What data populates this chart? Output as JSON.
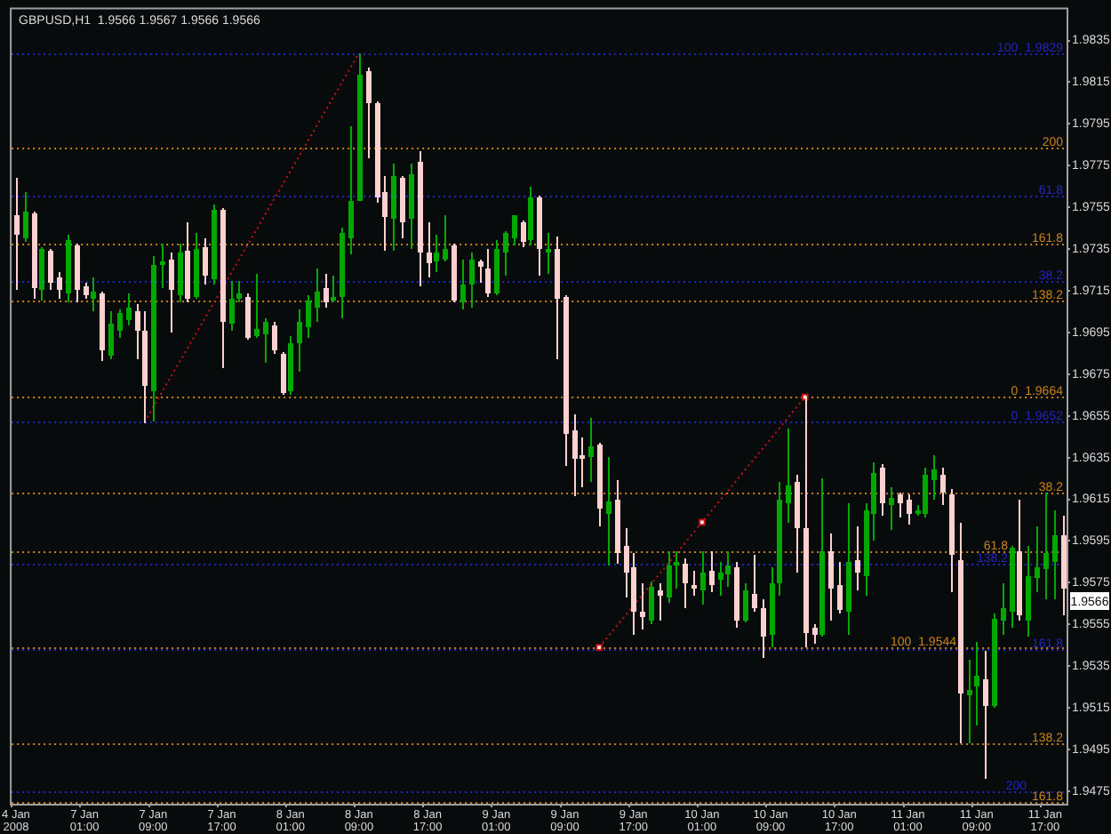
{
  "chart_data": {
    "type": "candlestick",
    "title": "GBPUSD,H1  1.9566 1.9567 1.9566 1.9566",
    "categories": [
      "4 Jan 2008",
      null,
      null,
      null,
      null,
      null,
      null,
      null,
      "7 Jan 01:00",
      null,
      null,
      null,
      null,
      null,
      null,
      null,
      "7 Jan 09:00",
      null,
      null,
      null,
      null,
      null,
      null,
      null,
      "7 Jan 17:00",
      null,
      null,
      null,
      null,
      null,
      null,
      null,
      "8 Jan 01:00",
      null,
      null,
      null,
      null,
      null,
      null,
      null,
      "8 Jan 09:00",
      null,
      null,
      null,
      null,
      null,
      null,
      null,
      "8 Jan 17:00",
      null,
      null,
      null,
      null,
      null,
      null,
      null,
      "9 Jan 01:00",
      null,
      null,
      null,
      null,
      null,
      null,
      null,
      "9 Jan 09:00",
      null,
      null,
      null,
      null,
      null,
      null,
      null,
      "9 Jan 17:00",
      null,
      null,
      null,
      null,
      null,
      null,
      null,
      "10 Jan 01:00",
      null,
      null,
      null,
      null,
      null,
      null,
      null,
      "10 Jan 09:00",
      null,
      null,
      null,
      null,
      null,
      null,
      null,
      "10 Jan 17:00",
      null,
      null,
      null,
      null,
      null,
      null,
      null,
      "11 Jan 01:00",
      null,
      null,
      null,
      null,
      null,
      null,
      null,
      "11 Jan 09:00",
      null,
      null,
      null,
      null,
      null,
      null,
      null,
      "11 Jan 17:00",
      null,
      null
    ],
    "ohlc": [
      [
        1.9751,
        1.9769,
        1.9716,
        1.9743
      ],
      [
        1.9741,
        1.9762,
        1.9739,
        1.9753
      ],
      [
        1.9752,
        1.9753,
        1.9712,
        1.9717
      ],
      [
        1.9716,
        1.9736,
        1.9711,
        1.9735
      ],
      [
        1.9734,
        1.9735,
        1.9716,
        1.972
      ],
      [
        1.9721,
        1.9724,
        1.9712,
        1.9716
      ],
      [
        1.9715,
        1.9742,
        1.971,
        1.9739
      ],
      [
        1.9737,
        1.9738,
        1.971,
        1.9716
      ],
      [
        1.9717,
        1.9719,
        1.9712,
        1.9714
      ],
      [
        1.9712,
        1.9721,
        1.9706,
        1.9715
      ],
      [
        1.9714,
        1.9715,
        1.9682,
        1.9687
      ],
      [
        1.9685,
        1.9705,
        1.9683,
        1.9699
      ],
      [
        1.9697,
        1.9706,
        1.9693,
        1.9704
      ],
      [
        1.9702,
        1.9714,
        1.9699,
        1.9707
      ],
      [
        1.9705,
        1.9709,
        1.9683,
        1.9697
      ],
      [
        1.9696,
        1.9705,
        1.9652,
        1.967
      ],
      [
        1.9668,
        1.9732,
        1.9653,
        1.9727
      ],
      [
        1.9728,
        1.9738,
        1.9717,
        1.9729
      ],
      [
        1.973,
        1.9733,
        1.9696,
        1.9716
      ],
      [
        1.9714,
        1.9738,
        1.971,
        1.9733
      ],
      [
        1.9734,
        1.9748,
        1.971,
        1.9712
      ],
      [
        1.9713,
        1.9743,
        1.9712,
        1.9735
      ],
      [
        1.9736,
        1.974,
        1.9719,
        1.9723
      ],
      [
        1.9721,
        1.9756,
        1.9719,
        1.9754
      ],
      [
        1.9754,
        1.9755,
        1.9679,
        1.9701
      ],
      [
        1.97,
        1.972,
        1.9697,
        1.9711
      ],
      [
        1.9712,
        1.972,
        1.971,
        1.9714
      ],
      [
        1.9712,
        1.9714,
        1.9692,
        1.9693
      ],
      [
        1.9694,
        1.9723,
        1.9693,
        1.9697
      ],
      [
        1.9695,
        1.9702,
        1.9681,
        1.97
      ],
      [
        1.9698,
        1.97,
        1.9686,
        1.9687
      ],
      [
        1.9685,
        1.9686,
        1.9666,
        1.9667
      ],
      [
        1.9668,
        1.9693,
        1.9666,
        1.969
      ],
      [
        1.9691,
        1.9706,
        1.9677,
        1.97
      ],
      [
        1.9698,
        1.9713,
        1.9693,
        1.971
      ],
      [
        1.9708,
        1.9726,
        1.9701,
        1.9715
      ],
      [
        1.9716,
        1.9723,
        1.9708,
        1.971
      ],
      [
        1.9711,
        1.9722,
        1.971,
        1.9712
      ],
      [
        1.9713,
        1.9745,
        1.9703,
        1.9743
      ],
      [
        1.9741,
        1.9794,
        1.9733,
        1.9758
      ],
      [
        1.9759,
        1.9829,
        1.9759,
        1.9819
      ],
      [
        1.982,
        1.9822,
        1.9779,
        1.9806
      ],
      [
        1.9805,
        1.9806,
        1.9758,
        1.9761
      ],
      [
        1.9762,
        1.977,
        1.9735,
        1.9751
      ],
      [
        1.975,
        1.9776,
        1.9735,
        1.977
      ],
      [
        1.9769,
        1.977,
        1.9741,
        1.9749
      ],
      [
        1.975,
        1.9776,
        1.9736,
        1.9771
      ],
      [
        1.9777,
        1.9782,
        1.9718,
        1.9734
      ],
      [
        1.9733,
        1.9748,
        1.9722,
        1.9729
      ],
      [
        1.973,
        1.9742,
        1.9725,
        1.9733
      ],
      [
        1.9731,
        1.9751,
        1.973,
        1.9735
      ],
      [
        1.9737,
        1.9738,
        1.971,
        1.9711
      ],
      [
        1.971,
        1.973,
        1.9707,
        1.9718
      ],
      [
        1.9719,
        1.9733,
        1.9708,
        1.973
      ],
      [
        1.9729,
        1.973,
        1.972,
        1.9727
      ],
      [
        1.9726,
        1.9735,
        1.9713,
        1.9715
      ],
      [
        1.9715,
        1.9739,
        1.9714,
        1.9735
      ],
      [
        1.9734,
        1.9744,
        1.9723,
        1.9743
      ],
      [
        1.9741,
        1.9751,
        1.9738,
        1.9751
      ],
      [
        1.9748,
        1.9749,
        1.9737,
        1.9739
      ],
      [
        1.974,
        1.9765,
        1.9738,
        1.976
      ],
      [
        1.976,
        1.9761,
        1.9723,
        1.9736
      ],
      [
        1.9734,
        1.9743,
        1.9724,
        1.9735
      ],
      [
        1.9735,
        1.9741,
        1.9683,
        1.9712
      ],
      [
        1.9712,
        1.9713,
        1.9632,
        1.9647
      ],
      [
        1.9648,
        1.9656,
        1.9617,
        1.9635
      ],
      [
        1.9636,
        1.9645,
        1.9622,
        1.9635
      ],
      [
        1.9636,
        1.9654,
        1.9624,
        1.964
      ],
      [
        1.9641,
        1.9642,
        1.9603,
        1.9611
      ],
      [
        1.9609,
        1.9635,
        1.9584,
        1.9614
      ],
      [
        1.9615,
        1.9624,
        1.9585,
        1.959
      ],
      [
        1.9593,
        1.9601,
        1.9569,
        1.9581
      ],
      [
        1.9582,
        1.9589,
        1.9551,
        1.9562
      ],
      [
        1.9561,
        1.9575,
        1.9553,
        1.9559
      ],
      [
        1.9558,
        1.9576,
        1.9556,
        1.9573
      ],
      [
        1.9571,
        1.9575,
        1.9558,
        1.957
      ],
      [
        1.9569,
        1.959,
        1.9566,
        1.9583
      ],
      [
        1.9584,
        1.959,
        1.9573,
        1.9585
      ],
      [
        1.9584,
        1.9587,
        1.9564,
        1.9576
      ],
      [
        1.9574,
        1.9581,
        1.957,
        1.9573
      ],
      [
        1.9572,
        1.959,
        1.9565,
        1.958
      ],
      [
        1.9581,
        1.959,
        1.9571,
        1.9575
      ],
      [
        1.9577,
        1.9585,
        1.957,
        1.958
      ],
      [
        1.958,
        1.959,
        1.9574,
        1.9583
      ],
      [
        1.9582,
        1.9585,
        1.9554,
        1.9558
      ],
      [
        1.9558,
        1.9575,
        1.9557,
        1.9571
      ],
      [
        1.957,
        1.9588,
        1.9562,
        1.9564
      ],
      [
        1.9563,
        1.9567,
        1.954,
        1.955
      ],
      [
        1.9551,
        1.9582,
        1.9545,
        1.9575
      ],
      [
        1.9576,
        1.9623,
        1.957,
        1.9615
      ],
      [
        1.9614,
        1.9649,
        1.9605,
        1.9622
      ],
      [
        1.9623,
        1.9627,
        1.9581,
        1.9602
      ],
      [
        1.9601,
        1.9664,
        1.9545,
        1.9552
      ],
      [
        1.9553,
        1.9555,
        1.9547,
        1.9551
      ],
      [
        1.9551,
        1.9625,
        1.955,
        1.959
      ],
      [
        1.959,
        1.9599,
        1.9558,
        1.9573
      ],
      [
        1.9574,
        1.9585,
        1.9561,
        1.9563
      ],
      [
        1.9562,
        1.9613,
        1.9551,
        1.9585
      ],
      [
        1.9586,
        1.9602,
        1.9572,
        1.9581
      ],
      [
        1.9579,
        1.9613,
        1.957,
        1.961
      ],
      [
        1.9609,
        1.9633,
        1.9596,
        1.9628
      ],
      [
        1.963,
        1.9632,
        1.9608,
        1.9614
      ],
      [
        1.9613,
        1.9621,
        1.9601,
        1.9616
      ],
      [
        1.9617,
        1.9618,
        1.9607,
        1.9614
      ],
      [
        1.9615,
        1.9617,
        1.9604,
        1.9609
      ],
      [
        1.9609,
        1.9612,
        1.9608,
        1.961
      ],
      [
        1.9609,
        1.963,
        1.9607,
        1.9627
      ],
      [
        1.9625,
        1.9636,
        1.9616,
        1.9629
      ],
      [
        1.9627,
        1.963,
        1.9613,
        1.9619
      ],
      [
        1.9617,
        1.962,
        1.9571,
        1.9589
      ],
      [
        1.9586,
        1.9604,
        1.9499,
        1.9523
      ],
      [
        1.9522,
        1.9538,
        1.9499,
        1.9524
      ],
      [
        1.9526,
        1.9547,
        1.9507,
        1.953
      ],
      [
        1.9529,
        1.9542,
        1.9482,
        1.9517
      ],
      [
        1.9517,
        1.956,
        1.9516,
        1.9558
      ],
      [
        1.9558,
        1.9575,
        1.9551,
        1.9563
      ],
      [
        1.9562,
        1.9593,
        1.9554,
        1.9592
      ],
      [
        1.959,
        1.9615,
        1.9558,
        1.956
      ],
      [
        1.9558,
        1.9593,
        1.955,
        1.9578
      ],
      [
        1.9578,
        1.9602,
        1.9571,
        1.9582
      ],
      [
        1.9582,
        1.9618,
        1.9568,
        1.9589
      ],
      [
        1.9586,
        1.961,
        1.9568,
        1.9598
      ],
      [
        1.9598,
        1.9607,
        1.956,
        1.9573
      ]
    ],
    "colors": [
      "#ffd0d0",
      "#00a800",
      "#ffd0d0",
      "#00a800",
      "#ffd0d0",
      "#ffd0d0",
      "#00a800",
      "#ffd0d0",
      "#ffd0d0",
      "#00a800",
      "#ffd0d0",
      "#00a800",
      "#00a800",
      "#00a800",
      "#ffd0d0",
      "#ffd0d0",
      "#00a800",
      "#00a800",
      "#ffd0d0",
      "#00a800",
      "#ffd0d0",
      "#00a800",
      "#ffd0d0",
      "#00a800",
      "#ffd0d0",
      "#00a800",
      "#00a800",
      "#ffd0d0",
      "#00a800",
      "#00a800",
      "#ffd0d0",
      "#ffd0d0",
      "#00a800",
      "#00a800",
      "#00a800",
      "#00a800",
      "#ffd0d0",
      "#00a800",
      "#00a800",
      "#00a800",
      "#00a800",
      "#ffd0d0",
      "#ffd0d0",
      "#ffd0d0",
      "#00a800",
      "#ffd0d0",
      "#00a800",
      "#ffd0d0",
      "#ffd0d0",
      "#00a800",
      "#00a800",
      "#ffd0d0",
      "#00a800",
      "#00a800",
      "#ffd0d0",
      "#ffd0d0",
      "#00a800",
      "#00a800",
      "#00a800",
      "#ffd0d0",
      "#00a800",
      "#ffd0d0",
      "#00a800",
      "#ffd0d0",
      "#ffd0d0",
      "#ffd0d0",
      "#ffd0d0",
      "#00a800",
      "#ffd0d0",
      "#00a800",
      "#ffd0d0",
      "#ffd0d0",
      "#ffd0d0",
      "#ffd0d0",
      "#00a800",
      "#ffd0d0",
      "#00a800",
      "#00a800",
      "#ffd0d0",
      "#ffd0d0",
      "#00a800",
      "#ffd0d0",
      "#00a800",
      "#00a800",
      "#ffd0d0",
      "#00a800",
      "#ffd0d0",
      "#ffd0d0",
      "#00a800",
      "#00a800",
      "#00a800",
      "#ffd0d0",
      "#ffd0d0",
      "#ffd0d0",
      "#00a800",
      "#ffd0d0",
      "#ffd0d0",
      "#00a800",
      "#ffd0d0",
      "#00a800",
      "#00a800",
      "#ffd0d0",
      "#00a800",
      "#ffd0d0",
      "#ffd0d0",
      "#00a800",
      "#00a800",
      "#00a800",
      "#ffd0d0",
      "#ffd0d0",
      "#ffd0d0",
      "#00a800",
      "#00a800",
      "#ffd0d0",
      "#00a800",
      "#00a800",
      "#00a800",
      "#ffd0d0",
      "#00a800",
      "#00a800",
      "#00a800",
      "#00a800",
      "#ffd0d0"
    ],
    "series": [
      {
        "type": "line",
        "color": "#c81414",
        "line_style": "dotted",
        "marker": "none",
        "values": [
          null,
          null,
          null,
          null,
          null,
          null,
          null,
          null,
          null,
          null,
          null,
          null,
          null,
          null,
          null,
          1.9652,
          null,
          null,
          null,
          null,
          null,
          null,
          null,
          null,
          null,
          null,
          null,
          null,
          null,
          null,
          null,
          null,
          null,
          null,
          null,
          null,
          null,
          null,
          null,
          null,
          1.9829,
          null,
          null,
          null,
          null,
          null,
          null,
          null,
          null,
          null,
          null,
          null,
          null,
          null,
          null,
          null,
          null,
          null,
          null,
          null,
          null,
          null,
          null,
          null,
          null,
          null,
          null,
          null,
          null,
          null,
          null,
          null,
          null,
          null,
          null,
          null,
          null,
          null,
          null,
          null,
          null,
          null,
          null,
          null,
          null,
          null,
          null,
          null,
          null,
          null,
          null,
          null,
          null,
          null,
          null,
          null,
          null,
          null,
          null,
          null,
          null,
          null,
          null,
          null,
          null,
          null,
          null,
          null,
          null,
          null,
          null,
          null,
          null,
          null,
          null,
          null,
          null,
          null,
          null,
          null,
          null,
          null,
          null
        ]
      },
      {
        "type": "line",
        "color": "#c81414",
        "line_style": "dotted",
        "marker": "square",
        "values": [
          null,
          null,
          null,
          null,
          null,
          null,
          null,
          null,
          null,
          null,
          null,
          null,
          null,
          null,
          null,
          null,
          null,
          null,
          null,
          null,
          null,
          null,
          null,
          null,
          null,
          null,
          null,
          null,
          null,
          null,
          null,
          null,
          null,
          null,
          null,
          null,
          null,
          null,
          null,
          null,
          null,
          null,
          null,
          null,
          null,
          null,
          null,
          null,
          null,
          null,
          null,
          null,
          null,
          null,
          null,
          null,
          null,
          null,
          null,
          null,
          null,
          null,
          null,
          null,
          null,
          null,
          null,
          null,
          1.9544,
          null,
          null,
          null,
          null,
          null,
          null,
          null,
          null,
          null,
          null,
          null,
          1.9604,
          null,
          null,
          null,
          null,
          null,
          null,
          null,
          null,
          null,
          null,
          null,
          1.9664,
          null,
          null,
          null,
          null,
          null,
          null,
          null,
          null,
          null,
          null,
          null,
          null,
          null,
          null,
          null,
          null,
          null,
          null,
          null,
          null,
          null,
          null,
          null,
          null,
          null,
          null,
          null,
          null,
          null,
          null
        ]
      }
    ],
    "ylim": [
      1.9469,
      1.985
    ],
    "yticks": [
      1.9475,
      1.9495,
      1.9515,
      1.9535,
      1.9555,
      1.9575,
      1.9595,
      1.9615,
      1.9635,
      1.9655,
      1.9675,
      1.9695,
      1.9715,
      1.9735,
      1.9755,
      1.9775,
      1.9795,
      1.9815,
      1.9835
    ],
    "ref_lines": [
      {
        "axis": "y",
        "value": 1.9784,
        "color": "#c8821e",
        "line_style": "dotted"
      },
      {
        "axis": "y",
        "value": 1.9738,
        "color": "#c8821e",
        "line_style": "dotted"
      },
      {
        "axis": "y",
        "value": 1.971,
        "color": "#c8821e",
        "line_style": "dotted"
      },
      {
        "axis": "y",
        "value": 1.9664,
        "label": "0  1.9664",
        "color": "#c8821e",
        "line_style": "dotted"
      },
      {
        "axis": "y",
        "value": 1.9618,
        "color": "#c8821e",
        "line_style": "dotted"
      },
      {
        "axis": "y",
        "value": 1.959,
        "color": "#c8821e",
        "line_style": "dotted"
      },
      {
        "axis": "y",
        "value": 1.9544,
        "label": "100  1.9544",
        "color": "#c8821e",
        "line_style": "dotted"
      },
      {
        "axis": "y",
        "value": 1.9498,
        "color": "#c8821e",
        "line_style": "dotted"
      },
      {
        "axis": "y",
        "value": 1.947,
        "color": "#c8821e",
        "line_style": "dotted"
      },
      {
        "axis": "y",
        "value": 1.9829,
        "label": "100  1.9829",
        "color": "#2424c0",
        "line_style": "dotted"
      },
      {
        "axis": "y",
        "value": 1.9761,
        "color": "#2424c0",
        "line_style": "dotted"
      },
      {
        "axis": "y",
        "value": 1.972,
        "color": "#2424c0",
        "line_style": "dotted"
      },
      {
        "axis": "y",
        "value": 1.9652,
        "label": "0  1.9652",
        "color": "#2424c0",
        "line_style": "dotted"
      },
      {
        "axis": "y",
        "value": 1.9584,
        "color": "#2424c0",
        "line_style": "dotted"
      },
      {
        "axis": "y",
        "value": 1.9543,
        "color": "#2424c0",
        "line_style": "dotted"
      },
      {
        "axis": "y",
        "value": 1.9475,
        "color": "#2424c0",
        "line_style": "dotted"
      }
    ],
    "annotations": [
      {
        "text": "200",
        "y": 1.9784
      },
      {
        "text": "161.8",
        "y": 1.9738
      },
      {
        "text": "138.2",
        "y": 1.971
      },
      {
        "text": "38.2",
        "y": 1.9618
      },
      {
        "text": "61.8",
        "y": 1.959
      },
      {
        "text": "138.2",
        "y": 1.9498
      },
      {
        "text": "161.8",
        "y": 1.947
      },
      {
        "text": "61.8",
        "y": 1.9761
      },
      {
        "text": "38.2",
        "y": 1.972
      },
      {
        "text": "138.2",
        "y": 1.9584
      },
      {
        "text": "161.8",
        "y": 1.9543
      },
      {
        "text": "200",
        "y": 1.9475
      },
      {
        "text": "1.9566",
        "y": 1.9566
      }
    ]
  }
}
